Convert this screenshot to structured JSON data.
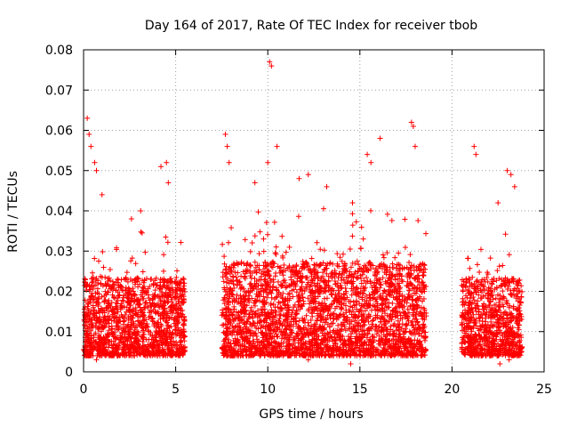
{
  "chart_data": {
    "type": "scatter",
    "title": "Day 164 of 2017, Rate Of TEC Index for receiver tbob",
    "xlabel": "GPS time / hours",
    "ylabel": "ROTI / TECUs",
    "xlim": [
      0,
      25
    ],
    "ylim": [
      0,
      0.08
    ],
    "grid": true,
    "marker": "plus",
    "series_color": "#ff0000",
    "x_ticks": [
      0,
      5,
      10,
      15,
      20,
      25
    ],
    "x_tick_labels": [
      "0",
      "5",
      "10",
      "15",
      "20",
      "25"
    ],
    "y_ticks": [
      0,
      0.01,
      0.02,
      0.03,
      0.04,
      0.05,
      0.06,
      0.07,
      0.08
    ],
    "y_tick_labels": [
      "0",
      "0.01",
      "0.02",
      "0.03",
      "0.04",
      "0.05",
      "0.06",
      "0.07",
      "0.08"
    ],
    "segments": [
      {
        "x_start": 0.0,
        "x_end": 5.5,
        "typical_min": 0.004,
        "typical_max": 0.03
      },
      {
        "x_start": 7.5,
        "x_end": 18.6,
        "typical_min": 0.004,
        "typical_max": 0.035
      },
      {
        "x_start": 20.5,
        "x_end": 23.8,
        "typical_min": 0.004,
        "typical_max": 0.03
      }
    ],
    "peaks": [
      {
        "x": 0.2,
        "y": 0.063
      },
      {
        "x": 0.3,
        "y": 0.059
      },
      {
        "x": 0.4,
        "y": 0.056
      },
      {
        "x": 0.6,
        "y": 0.052
      },
      {
        "x": 0.7,
        "y": 0.05
      },
      {
        "x": 1.0,
        "y": 0.044
      },
      {
        "x": 4.2,
        "y": 0.051
      },
      {
        "x": 4.5,
        "y": 0.052
      },
      {
        "x": 4.6,
        "y": 0.047
      },
      {
        "x": 7.7,
        "y": 0.059
      },
      {
        "x": 7.8,
        "y": 0.056
      },
      {
        "x": 7.9,
        "y": 0.052
      },
      {
        "x": 10.1,
        "y": 0.077
      },
      {
        "x": 10.2,
        "y": 0.076
      },
      {
        "x": 10.0,
        "y": 0.052
      },
      {
        "x": 10.5,
        "y": 0.056
      },
      {
        "x": 11.7,
        "y": 0.048
      },
      {
        "x": 12.2,
        "y": 0.049
      },
      {
        "x": 15.4,
        "y": 0.054
      },
      {
        "x": 15.6,
        "y": 0.052
      },
      {
        "x": 16.1,
        "y": 0.058
      },
      {
        "x": 17.8,
        "y": 0.062
      },
      {
        "x": 17.9,
        "y": 0.061
      },
      {
        "x": 18.0,
        "y": 0.056
      },
      {
        "x": 21.2,
        "y": 0.056
      },
      {
        "x": 21.3,
        "y": 0.054
      },
      {
        "x": 23.0,
        "y": 0.05
      },
      {
        "x": 23.2,
        "y": 0.049
      },
      {
        "x": 23.4,
        "y": 0.046
      },
      {
        "x": 22.5,
        "y": 0.042
      },
      {
        "x": 2.6,
        "y": 0.038
      },
      {
        "x": 3.1,
        "y": 0.04
      },
      {
        "x": 13.2,
        "y": 0.046
      },
      {
        "x": 14.6,
        "y": 0.042
      },
      {
        "x": 9.3,
        "y": 0.047
      }
    ],
    "low_outliers": [
      {
        "x": 0.7,
        "y": 0.003
      },
      {
        "x": 12.2,
        "y": 0.003
      },
      {
        "x": 14.5,
        "y": 0.002
      },
      {
        "x": 22.6,
        "y": 0.002
      },
      {
        "x": 23.1,
        "y": 0.003
      },
      {
        "x": 10.3,
        "y": 0.004
      }
    ]
  }
}
